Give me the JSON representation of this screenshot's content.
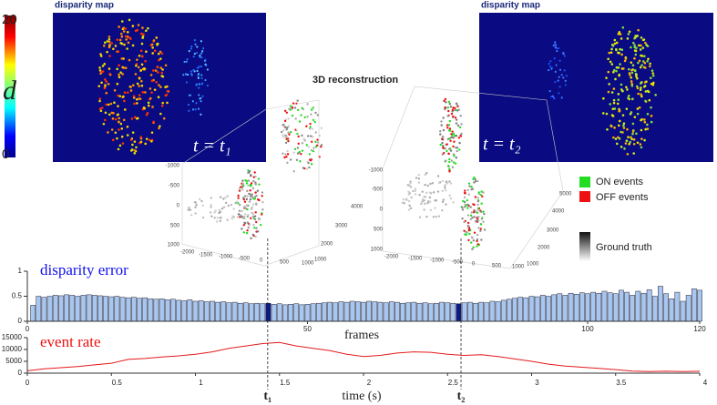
{
  "colorbar": {
    "label": "d",
    "max": 20,
    "min": 0
  },
  "maps": [
    {
      "title": "disparity map",
      "time_label": "t = t₁"
    },
    {
      "title": "disparity map",
      "time_label": "t = t₂"
    }
  ],
  "reconstruction": {
    "title": "3D reconstruction",
    "plots": [
      {
        "z_ticks": [
          -1000,
          -500,
          0,
          500,
          1000
        ],
        "x_ticks": [
          -2000,
          -1500,
          -1000,
          -500,
          0,
          500,
          1000
        ],
        "y_ticks": [
          1000,
          2000,
          3000,
          4000
        ]
      },
      {
        "z_ticks": [
          -1000,
          -500,
          0,
          500,
          1000
        ],
        "x_ticks": [
          -2000,
          -1500,
          -1000,
          -500,
          0,
          500,
          1000
        ],
        "y_ticks": [
          1000,
          2000,
          3000,
          4000,
          5000
        ]
      }
    ]
  },
  "legend": [
    {
      "label": "ON events",
      "color": "#22dd22"
    },
    {
      "label": "OFF events",
      "color": "#ee1111"
    },
    {
      "label": "Ground truth",
      "color": "#333333"
    }
  ],
  "chart_data": [
    {
      "type": "bar",
      "title": "disparity error",
      "title_color": "#1010ee",
      "xlabel": "frames",
      "x": [
        1,
        2,
        3,
        4,
        5,
        6,
        7,
        8,
        9,
        10,
        11,
        12,
        13,
        14,
        15,
        16,
        17,
        18,
        19,
        20,
        21,
        22,
        23,
        24,
        25,
        26,
        27,
        28,
        29,
        30,
        31,
        32,
        33,
        34,
        35,
        36,
        37,
        38,
        39,
        40,
        41,
        42,
        43,
        44,
        45,
        46,
        47,
        48,
        49,
        50,
        51,
        52,
        53,
        54,
        55,
        56,
        57,
        58,
        59,
        60,
        61,
        62,
        63,
        64,
        65,
        66,
        67,
        68,
        69,
        70,
        71,
        72,
        73,
        74,
        75,
        76,
        77,
        78,
        79,
        80,
        81,
        82,
        83,
        84,
        85,
        86,
        87,
        88,
        89,
        90,
        91,
        92,
        93,
        94,
        95,
        96,
        97,
        98,
        99,
        100,
        101,
        102,
        103,
        104,
        105,
        106,
        107,
        108,
        109,
        110,
        111,
        112,
        113,
        114,
        115,
        116,
        117,
        118,
        119,
        120
      ],
      "values": [
        0.32,
        0.5,
        0.48,
        0.5,
        0.52,
        0.51,
        0.53,
        0.52,
        0.5,
        0.52,
        0.53,
        0.52,
        0.51,
        0.5,
        0.49,
        0.5,
        0.48,
        0.47,
        0.48,
        0.46,
        0.47,
        0.45,
        0.44,
        0.45,
        0.43,
        0.44,
        0.42,
        0.41,
        0.43,
        0.4,
        0.41,
        0.39,
        0.4,
        0.38,
        0.39,
        0.37,
        0.38,
        0.36,
        0.37,
        0.35,
        0.36,
        0.35,
        0.36,
        0.34,
        0.35,
        0.33,
        0.34,
        0.35,
        0.33,
        0.34,
        0.35,
        0.36,
        0.37,
        0.38,
        0.37,
        0.39,
        0.38,
        0.4,
        0.39,
        0.38,
        0.4,
        0.39,
        0.38,
        0.37,
        0.39,
        0.38,
        0.36,
        0.37,
        0.38,
        0.36,
        0.37,
        0.35,
        0.36,
        0.38,
        0.37,
        0.36,
        0.35,
        0.37,
        0.38,
        0.36,
        0.38,
        0.37,
        0.4,
        0.39,
        0.42,
        0.44,
        0.46,
        0.48,
        0.47,
        0.5,
        0.49,
        0.52,
        0.5,
        0.53,
        0.55,
        0.52,
        0.56,
        0.54,
        0.57,
        0.55,
        0.58,
        0.56,
        0.6,
        0.57,
        0.55,
        0.62,
        0.58,
        0.52,
        0.6,
        0.56,
        0.63,
        0.5,
        0.7,
        0.55,
        0.45,
        0.58,
        0.4,
        0.52,
        0.65,
        0.62
      ],
      "color": "#a9c6ee",
      "highlight": [
        43,
        77
      ],
      "highlight_color": "#0a1a8c",
      "xlim": [
        0,
        120
      ],
      "xticks": [
        0,
        50,
        100,
        120
      ],
      "ylim": [
        0,
        1
      ],
      "yticks": [
        0,
        0.5,
        1
      ]
    },
    {
      "type": "line",
      "title": "event rate",
      "title_color": "#ee1111",
      "xlabel": "time (s)",
      "x": [
        0,
        0.1,
        0.2,
        0.3,
        0.4,
        0.5,
        0.6,
        0.7,
        0.8,
        0.9,
        1.0,
        1.1,
        1.2,
        1.3,
        1.4,
        1.5,
        1.6,
        1.7,
        1.8,
        1.9,
        2.0,
        2.1,
        2.2,
        2.3,
        2.4,
        2.5,
        2.6,
        2.7,
        2.8,
        2.9,
        3.0,
        3.1,
        3.2,
        3.3,
        3.4,
        3.5,
        3.6,
        3.7,
        3.8,
        3.9,
        4.0
      ],
      "values": [
        1000,
        1800,
        2300,
        2800,
        3500,
        4200,
        5800,
        6200,
        6800,
        7300,
        8000,
        9000,
        10500,
        11500,
        12500,
        13000,
        11500,
        10500,
        9500,
        8000,
        7000,
        7500,
        8500,
        9000,
        8800,
        8000,
        7500,
        7800,
        7000,
        6000,
        5000,
        3800,
        3000,
        2500,
        2000,
        1500,
        900,
        700,
        800,
        700,
        800
      ],
      "color": "#e41a1c",
      "markers": [
        {
          "x": 1.43,
          "label": "t₁"
        },
        {
          "x": 2.58,
          "label": "t₂"
        }
      ],
      "xlim": [
        0,
        4
      ],
      "xticks": [
        0,
        0.5,
        1,
        1.5,
        2,
        2.5,
        3,
        3.5,
        4
      ],
      "ylim": [
        0,
        15000
      ],
      "yticks": [
        0,
        5000,
        10000,
        15000
      ]
    }
  ]
}
